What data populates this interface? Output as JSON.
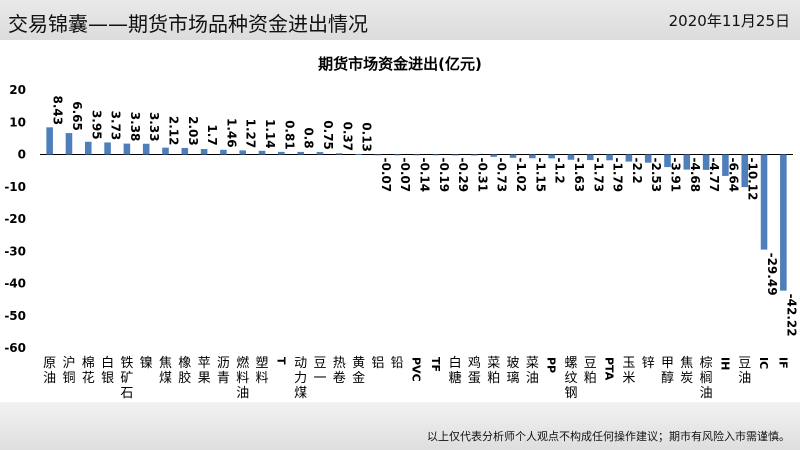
{
  "header": {
    "title": "交易锦囊——期货市场品种资金进出情况",
    "date": "2020年11月25日"
  },
  "footer": {
    "disclaimer": "以上仅代表分析师个人观点不构成任何操作建议；期市有风险入市需谨慎。"
  },
  "colors": {
    "bar": "#4f7fba",
    "axis": "#000000"
  },
  "chart_data": {
    "type": "bar",
    "title": "期货市场资金进出(亿元)",
    "xlabel": "",
    "ylabel": "",
    "ylim": [
      -60,
      20
    ],
    "yticks": [
      20,
      10,
      0,
      -10,
      -20,
      -30,
      -40,
      -50,
      -60
    ],
    "grid": false,
    "categories": [
      "原油",
      "沪铜",
      "棉花",
      "白银",
      "铁矿石",
      "镍",
      "焦煤",
      "橡胶",
      "苹果",
      "沥青",
      "燃料油",
      "塑料",
      "T",
      "动力煤",
      "豆一",
      "热卷",
      "黄金",
      "铝",
      "铅",
      "PVC",
      "TF",
      "白糖",
      "鸡蛋",
      "菜粕",
      "玻璃",
      "菜油",
      "PP",
      "螺纹钢",
      "豆粕",
      "PTA",
      "玉米",
      "锌",
      "甲醇",
      "焦炭",
      "棕榈油",
      "IH",
      "豆油",
      "IC",
      "IF"
    ],
    "values": [
      8.43,
      6.65,
      3.95,
      3.73,
      3.38,
      3.33,
      2.12,
      2.03,
      1.7,
      1.46,
      1.27,
      1.14,
      0.81,
      0.8,
      0.75,
      0.37,
      0.13,
      -0.07,
      -0.07,
      -0.14,
      -0.19,
      -0.29,
      -0.31,
      -0.73,
      -1.02,
      -1.15,
      -1.2,
      -1.63,
      -1.73,
      -1.79,
      -2.2,
      -2.53,
      -3.91,
      -4.68,
      -4.77,
      -6.64,
      -10.12,
      -29.49,
      -42.22
    ],
    "data_labels": [
      "8.43",
      "6.65",
      "3.95",
      "3.73",
      "3.38",
      "3.33",
      "2.12",
      "2.03",
      "1.7",
      "1.46",
      "1.27",
      "1.14",
      "0.81",
      "0.8",
      "0.75",
      "0.37",
      "0.13",
      "-0.07",
      "-0.07",
      "-0.14",
      "-0.19",
      "-0.29",
      "-0.31",
      "-0.73",
      "-1.02",
      "-1.15",
      "-1.2",
      "-1.63",
      "-1.73",
      "-1.79",
      "-2.2",
      "-2.53",
      "-3.91",
      "-4.68",
      "-4.77",
      "-6.64",
      "-10.12",
      "-29.49",
      "-42.22"
    ]
  }
}
